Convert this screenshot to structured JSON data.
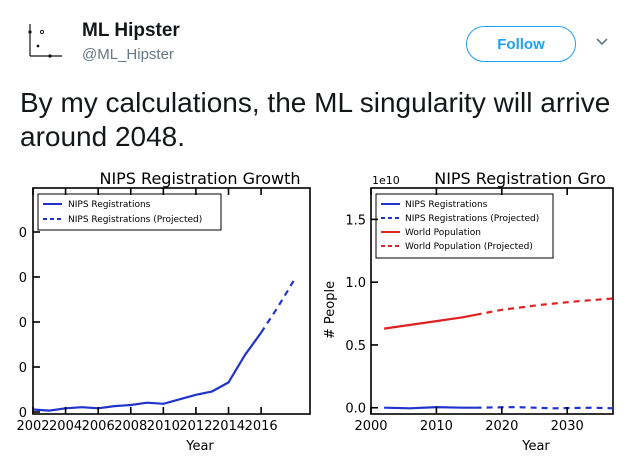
{
  "user": {
    "name": "ML Hipster",
    "handle": "@ML_Hipster"
  },
  "follow_label": "Follow",
  "tweet_text": "By my calculations, the ML singularity will arrive around 2048.",
  "colors": {
    "accent": "#1da1f2",
    "blue_series": "#2233cc",
    "red_series": "#dd2222"
  },
  "chart_data": [
    {
      "type": "line",
      "title": "NIPS Registration Growth",
      "xlabel": "Year",
      "ylabel": "",
      "x_ticks": [
        "2002",
        "2004",
        "2006",
        "2008",
        "2010",
        "2012",
        "2014",
        "2016"
      ],
      "y_ticks": [
        "0",
        "0",
        "0",
        "0",
        "0"
      ],
      "legend": [
        "NIPS Registrations",
        "NIPS Registrations (Projected)"
      ],
      "legend_position": "top-left",
      "xlim": [
        2002,
        2019
      ],
      "ylim": [
        0,
        10000
      ],
      "series": [
        {
          "name": "NIPS Registrations",
          "style": "solid",
          "x": [
            2002,
            2003,
            2004,
            2005,
            2006,
            2007,
            2008,
            2009,
            2010,
            2011,
            2012,
            2013,
            2014,
            2015,
            2016
          ],
          "y": [
            200,
            150,
            250,
            300,
            250,
            350,
            400,
            500,
            450,
            650,
            850,
            1000,
            1400,
            2600,
            3600
          ]
        },
        {
          "name": "NIPS Registrations (Projected)",
          "style": "dashed",
          "x": [
            2016,
            2017,
            2018
          ],
          "y": [
            3600,
            4700,
            5900
          ]
        }
      ]
    },
    {
      "type": "line",
      "title": "NIPS Registration Gro",
      "xlabel": "Year",
      "ylabel": "# People",
      "scale_label": "1e10",
      "x_ticks": [
        "2000",
        "2010",
        "2020",
        "2030"
      ],
      "y_ticks": [
        "0.0",
        "0.5",
        "1.0",
        "1.5"
      ],
      "legend": [
        "NIPS Registrations",
        "NIPS Registrations (Projected)",
        "World Population",
        "World Population (Projected)"
      ],
      "legend_position": "top-left",
      "xlim": [
        2000,
        2037
      ],
      "ylim": [
        -0.05,
        1.75
      ],
      "series": [
        {
          "name": "NIPS Registrations",
          "style": "solid",
          "x": [
            2002,
            2006,
            2010,
            2014,
            2016
          ],
          "y": [
            0.0,
            -0.005,
            0.005,
            0.0,
            0.0
          ]
        },
        {
          "name": "NIPS Registrations (Projected)",
          "style": "dashed",
          "x": [
            2016,
            2022,
            2028,
            2034,
            2037
          ],
          "y": [
            0.0,
            0.005,
            -0.005,
            0.0,
            -0.005
          ]
        },
        {
          "name": "World Population",
          "style": "solid",
          "x": [
            2002,
            2006,
            2010,
            2014,
            2016
          ],
          "y": [
            0.63,
            0.66,
            0.69,
            0.72,
            0.74
          ]
        },
        {
          "name": "World Population (Projected)",
          "style": "dashed",
          "x": [
            2016,
            2020,
            2026,
            2032,
            2037
          ],
          "y": [
            0.74,
            0.78,
            0.82,
            0.85,
            0.87
          ]
        }
      ]
    }
  ]
}
